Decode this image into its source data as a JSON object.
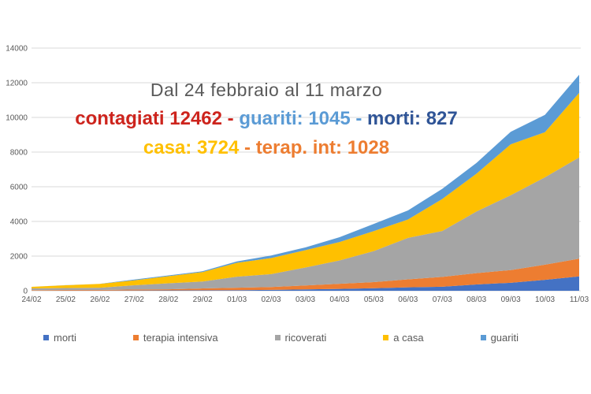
{
  "figure": {
    "background": "#ffffff",
    "title": {
      "text": "Dal 24 febbraio al 11 marzo",
      "color": "#595959"
    },
    "summary_line1": [
      {
        "text": "contagiati 12462",
        "color": "#cd241d"
      },
      {
        "text": " - ",
        "color": "#cd241d"
      },
      {
        "text": "guariti: 1045",
        "color": "#5b9bd5"
      },
      {
        "text": " - ",
        "color": "#5b9bd5"
      },
      {
        "text": "morti: 827",
        "color": "#2f5496"
      }
    ],
    "summary_line2": [
      {
        "text": "casa: 3724",
        "color": "#ffc000"
      },
      {
        "text": " - ",
        "color": "#ed7d31"
      },
      {
        "text": "terap. int: 1028",
        "color": "#ed7d31"
      }
    ]
  },
  "chart_data": {
    "type": "area",
    "stacked": true,
    "title": "Dal 24 febbraio al 11 marzo",
    "xlabel": "",
    "ylabel": "",
    "grid": true,
    "legend_position": "bottom",
    "ylim": [
      0,
      14000
    ],
    "ytick_step": 2000,
    "gridline_color": "#d9d9d9",
    "axis_text_color": "#595959",
    "legend_text_color": "#595959",
    "categories": [
      "24/02",
      "25/02",
      "26/02",
      "27/02",
      "28/02",
      "29/02",
      "01/03",
      "02/03",
      "03/03",
      "04/03",
      "05/03",
      "06/03",
      "07/03",
      "08/03",
      "09/03",
      "10/03",
      "11/03"
    ],
    "series": [
      {
        "name": "morti",
        "color": "#4472c4",
        "values": [
          7,
          10,
          12,
          17,
          21,
          29,
          34,
          52,
          79,
          107,
          148,
          197,
          233,
          366,
          463,
          631,
          827
        ]
      },
      {
        "name": "terapia intensiva",
        "color": "#ed7d31",
        "values": [
          26,
          35,
          36,
          56,
          64,
          105,
          140,
          166,
          229,
          295,
          351,
          462,
          567,
          650,
          733,
          877,
          1028
        ]
      },
      {
        "name": "ricoverati",
        "color": "#a5a5a5",
        "values": [
          101,
          114,
          128,
          248,
          345,
          401,
          639,
          742,
          1034,
          1346,
          1790,
          2394,
          2651,
          3557,
          4316,
          5038,
          5838
        ]
      },
      {
        "name": "a casa",
        "color": "#ffc000",
        "values": [
          94,
          162,
          221,
          284,
          412,
          543,
          798,
          927,
          1000,
          1065,
          1155,
          1060,
          1843,
          2180,
          2936,
          2599,
          3724
        ]
      },
      {
        "name": "guariti",
        "color": "#5b9bd5",
        "values": [
          1,
          1,
          3,
          45,
          46,
          50,
          83,
          149,
          160,
          276,
          414,
          523,
          589,
          622,
          724,
          1004,
          1045
        ]
      }
    ],
    "stack_totals": [
      229,
      322,
      400,
      650,
      888,
      1128,
      1694,
      2036,
      2502,
      3089,
      3858,
      4636,
      5883,
      7375,
      9172,
      10149,
      12462
    ]
  }
}
